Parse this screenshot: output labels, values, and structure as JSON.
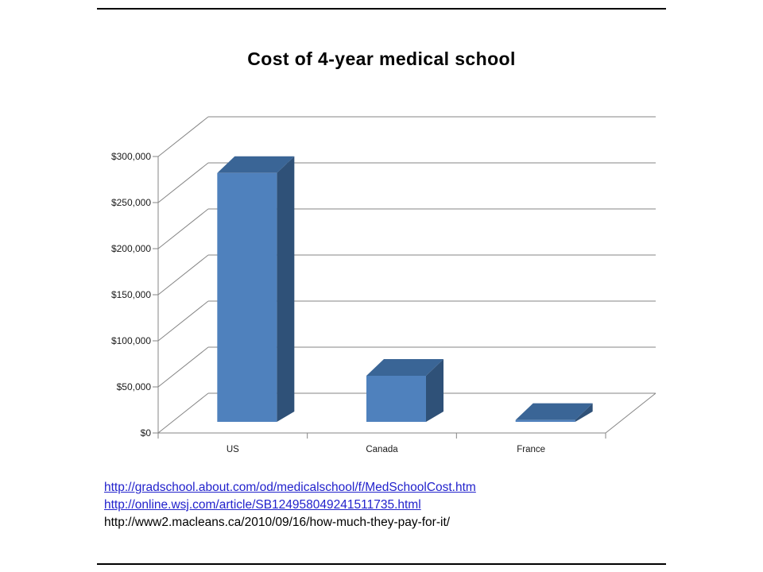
{
  "slide": {
    "title": "Cost of 4-year medical school"
  },
  "chart_data": {
    "type": "bar",
    "style": "3d-column",
    "title": "Cost of 4-year medical school",
    "categories": [
      "US",
      "Canada",
      "France"
    ],
    "values": [
      270000,
      50000,
      2000
    ],
    "xlabel": "",
    "ylabel": "",
    "ylim": [
      0,
      300000
    ],
    "ytick_step": 50000,
    "ytick_labels": [
      "$0",
      "$50,000",
      "$100,000",
      "$150,000",
      "$200,000",
      "$250,000",
      "$300,000"
    ],
    "grid": true,
    "legend": false,
    "bar_color": "#4F81BD",
    "bar_top_color": "#3A6596",
    "bar_side_color": "#2F5178",
    "gridline_color": "#868686",
    "label_color": "#1a1a1a"
  },
  "links": [
    {
      "text": "http://gradschool.about.com/od/medicalschool/f/MedSchoolCost.htm",
      "hyperlink": true
    },
    {
      "text": "http://online.wsj.com/article/SB124958049241511735.html",
      "hyperlink": true
    },
    {
      "text": "http://www2.macleans.ca/2010/09/16/how-much-they-pay-for-it/",
      "hyperlink": false
    }
  ],
  "colors": {
    "link_blue": "#2222CC",
    "text_black": "#000000",
    "slide_border": "#000000"
  }
}
